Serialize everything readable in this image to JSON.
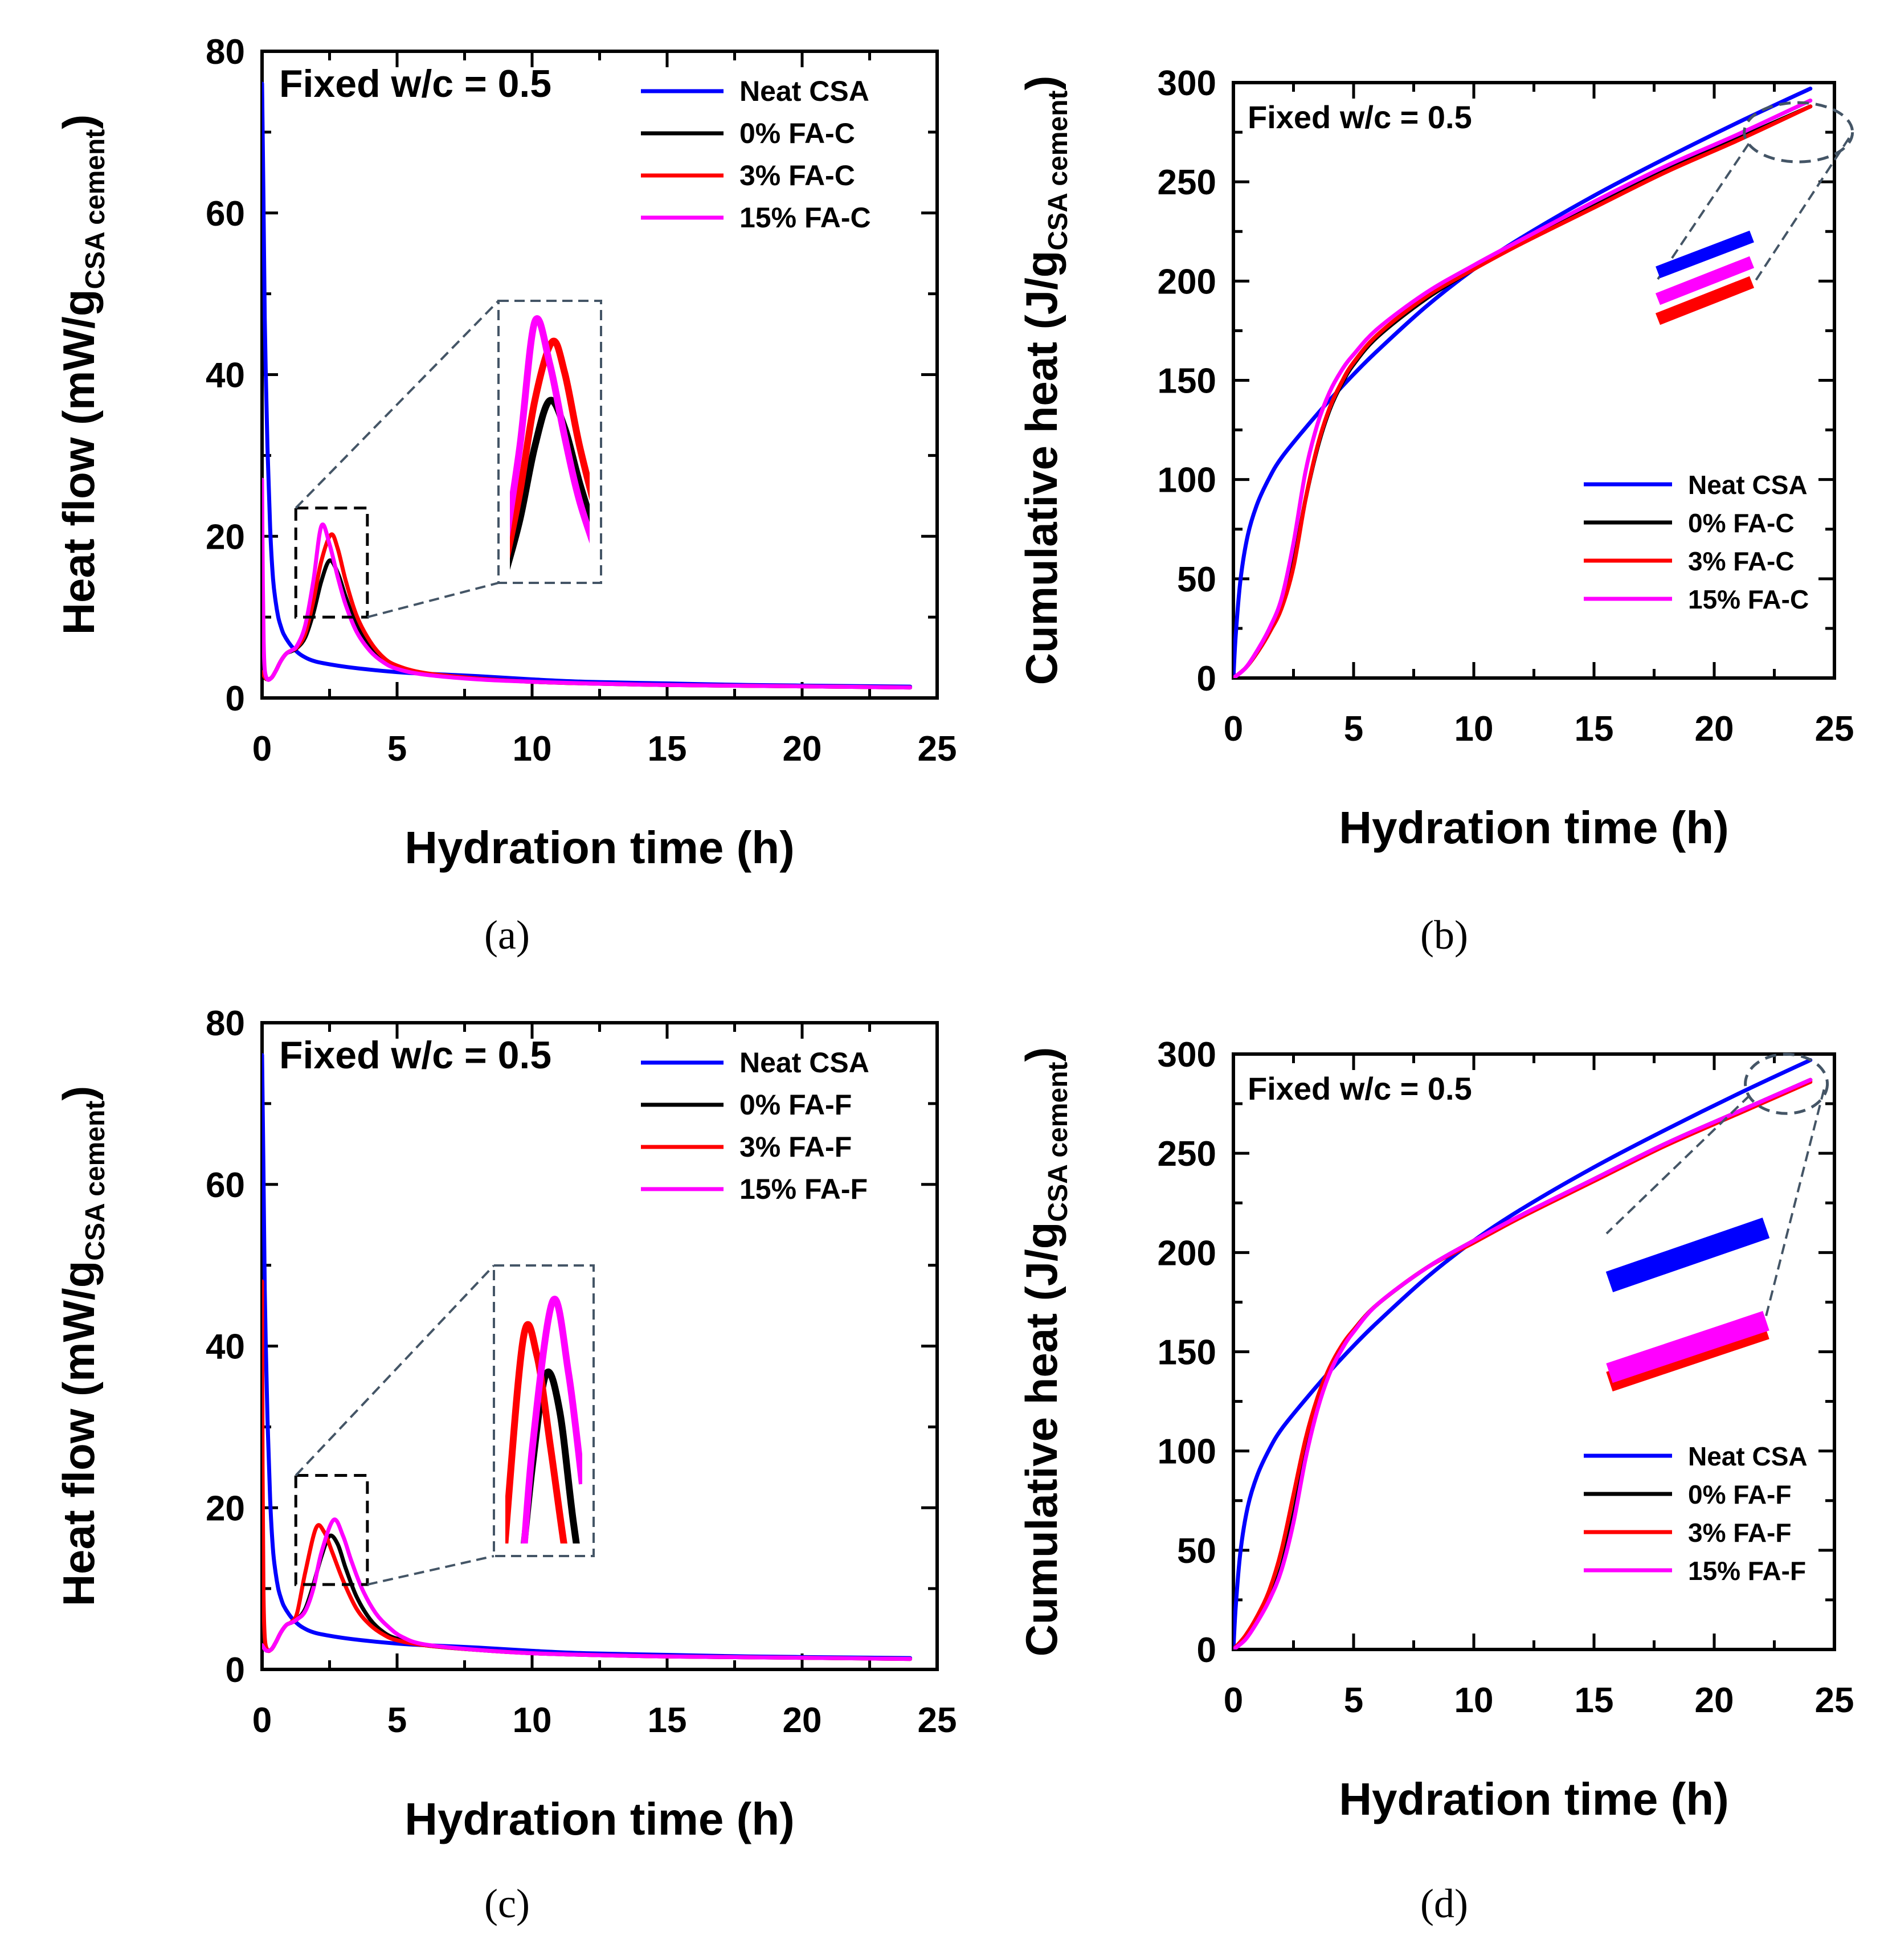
{
  "figure": {
    "captions": [
      "(a)",
      "(b)",
      "(c)",
      "(d)"
    ]
  },
  "colors": {
    "neat": "#0000ff",
    "zero": "#000000",
    "three": "#ff0000",
    "fifteen": "#ff00ff",
    "guide": "#445566"
  },
  "chart_data": [
    {
      "id": "a",
      "type": "line",
      "caption": "(a)",
      "annotation": "Fixed w/c = 0.5",
      "xlabel": "Hydration time (h)",
      "ylabel_main": "Heat flow (mW/g",
      "ylabel_sub": "CSA cement",
      "ylabel_close": ")",
      "xlim": [
        0,
        25
      ],
      "ylim": [
        0,
        80
      ],
      "xticks": [
        0,
        5,
        10,
        15,
        20,
        25
      ],
      "yticks": [
        0,
        20,
        40,
        60,
        80
      ],
      "legend_position": "top-right",
      "series": [
        {
          "name": "Neat CSA",
          "color_key": "neat",
          "x": [
            0,
            0.05,
            0.1,
            0.2,
            0.3,
            0.4,
            0.5,
            0.6,
            0.7,
            0.8,
            1.0,
            1.2,
            1.5,
            2,
            3,
            4,
            5,
            6,
            8,
            10,
            12,
            15,
            18,
            21,
            24
          ],
          "y": [
            76,
            62,
            47,
            31,
            21,
            15,
            12,
            10,
            8.8,
            7.9,
            6.8,
            6.0,
            5.2,
            4.5,
            3.9,
            3.5,
            3.2,
            3.0,
            2.7,
            2.3,
            2.0,
            1.8,
            1.6,
            1.5,
            1.4
          ]
        },
        {
          "name": "0% FA-C",
          "color_key": "zero",
          "x": [
            0,
            0.1,
            0.2,
            0.35,
            0.5,
            0.7,
            0.9,
            1.1,
            1.3,
            1.6,
            1.9,
            2.2,
            2.5,
            2.8,
            3.1,
            3.5,
            4,
            4.5,
            5,
            6,
            8,
            10,
            12,
            15,
            18,
            21,
            24
          ],
          "y": [
            3.0,
            2.5,
            2.3,
            2.5,
            3.3,
            4.6,
            5.5,
            5.8,
            6.2,
            7.5,
            10.5,
            14.5,
            17.0,
            15.5,
            12.5,
            9.0,
            6.2,
            4.6,
            3.8,
            3.0,
            2.4,
            2.0,
            1.8,
            1.6,
            1.5,
            1.4,
            1.3
          ]
        },
        {
          "name": "3% FA-C",
          "color_key": "three",
          "x": [
            0,
            0.1,
            0.2,
            0.35,
            0.5,
            0.7,
            0.9,
            1.1,
            1.3,
            1.6,
            1.9,
            2.2,
            2.55,
            2.8,
            3.1,
            3.5,
            4,
            4.5,
            5,
            6,
            8,
            10,
            12,
            15,
            18,
            21,
            24
          ],
          "y": [
            3.2,
            2.6,
            2.3,
            2.5,
            3.3,
            4.6,
            5.5,
            5.9,
            6.3,
            8.0,
            12.0,
            17.0,
            20.2,
            18.5,
            14.5,
            10.2,
            7.0,
            5.0,
            4.0,
            3.1,
            2.4,
            2.0,
            1.8,
            1.6,
            1.5,
            1.4,
            1.3
          ]
        },
        {
          "name": "15% FA-C",
          "color_key": "fifteen",
          "x": [
            0,
            0.03,
            0.06,
            0.1,
            0.2,
            0.35,
            0.5,
            0.7,
            0.9,
            1.1,
            1.3,
            1.6,
            1.9,
            2.2,
            2.5,
            2.8,
            3.1,
            3.5,
            4,
            4.5,
            5,
            6,
            8,
            10,
            12,
            15,
            18,
            21,
            24
          ],
          "y": [
            27,
            14,
            7,
            3.5,
            2.3,
            2.5,
            3.3,
            4.6,
            5.5,
            5.9,
            6.5,
            9.0,
            14.5,
            21.3,
            19.0,
            15.0,
            11.5,
            8.2,
            5.8,
            4.4,
            3.6,
            2.9,
            2.3,
            2.0,
            1.8,
            1.6,
            1.5,
            1.4,
            1.3
          ]
        }
      ]
    },
    {
      "id": "b",
      "type": "line",
      "caption": "(b)",
      "annotation": "Fixed w/c = 0.5",
      "xlabel": "Hydration time (h)",
      "ylabel_main": "Cumulative heat (J/g",
      "ylabel_sub": "CSA cement",
      "ylabel_close": ")",
      "xlim": [
        0,
        25
      ],
      "ylim": [
        0,
        300
      ],
      "xticks": [
        0,
        5,
        10,
        15,
        20,
        25
      ],
      "yticks": [
        0,
        50,
        100,
        150,
        200,
        250,
        300
      ],
      "legend_position": "bottom-right",
      "series": [
        {
          "name": "Neat CSA",
          "color_key": "neat",
          "x": [
            0,
            0.1,
            0.3,
            0.6,
            1,
            1.5,
            2,
            3,
            4,
            5,
            6,
            8,
            10,
            12,
            15,
            18,
            21,
            24
          ],
          "y": [
            0,
            22,
            50,
            72,
            88,
            101,
            111,
            126,
            140,
            153,
            165,
            187,
            206,
            222,
            243,
            262,
            280,
            297
          ]
        },
        {
          "name": "0% FA-C",
          "color_key": "zero",
          "x": [
            0,
            0.5,
            1,
            1.5,
            2,
            2.5,
            3,
            3.5,
            4,
            4.5,
            5,
            6,
            8,
            10,
            12,
            15,
            18,
            21,
            24
          ],
          "y": [
            0,
            5,
            13,
            23,
            36,
            58,
            90,
            116,
            135,
            148,
            158,
            172,
            191,
            206,
            220,
            238,
            256,
            272,
            288
          ]
        },
        {
          "name": "3% FA-C",
          "color_key": "three",
          "x": [
            0,
            0.5,
            1,
            1.5,
            2,
            2.5,
            3,
            3.5,
            4,
            4.5,
            5,
            6,
            8,
            10,
            12,
            15,
            18,
            21,
            24
          ],
          "y": [
            0,
            5,
            13,
            23,
            35,
            56,
            90,
            117,
            136,
            149,
            159,
            173,
            192,
            206,
            219,
            237,
            255,
            271,
            288
          ]
        },
        {
          "name": "15% FA-C",
          "color_key": "fifteen",
          "x": [
            0,
            0.5,
            1,
            1.5,
            2,
            2.5,
            3,
            3.5,
            4,
            4.5,
            5,
            6,
            8,
            10,
            12,
            15,
            18,
            21,
            24
          ],
          "y": [
            0,
            5,
            14,
            25,
            40,
            68,
            104,
            128,
            144,
            155,
            163,
            176,
            194,
            208,
            221,
            240,
            258,
            274,
            291
          ]
        }
      ]
    },
    {
      "id": "c",
      "type": "line",
      "caption": "(c)",
      "annotation": "Fixed w/c = 0.5",
      "xlabel": "Hydration time (h)",
      "ylabel_main": "Heat flow (mW/g",
      "ylabel_sub": "CSA cement",
      "ylabel_close": ")",
      "xlim": [
        0,
        25
      ],
      "ylim": [
        0,
        80
      ],
      "xticks": [
        0,
        5,
        10,
        15,
        20,
        25
      ],
      "yticks": [
        0,
        20,
        40,
        60,
        80
      ],
      "legend_position": "top-right",
      "series": [
        {
          "name": "Neat CSA",
          "color_key": "neat",
          "x": [
            0,
            0.05,
            0.1,
            0.2,
            0.3,
            0.4,
            0.5,
            0.6,
            0.7,
            0.8,
            1.0,
            1.2,
            1.5,
            2,
            3,
            4,
            5,
            6,
            8,
            10,
            12,
            15,
            18,
            21,
            24
          ],
          "y": [
            76,
            62,
            47,
            31,
            21,
            15,
            12,
            10,
            8.8,
            7.9,
            6.8,
            6.0,
            5.2,
            4.5,
            3.9,
            3.5,
            3.2,
            3.0,
            2.7,
            2.3,
            2.0,
            1.8,
            1.6,
            1.5,
            1.4
          ]
        },
        {
          "name": "0% FA-F",
          "color_key": "zero",
          "x": [
            0,
            0.1,
            0.2,
            0.35,
            0.5,
            0.7,
            0.9,
            1.1,
            1.3,
            1.6,
            1.9,
            2.2,
            2.5,
            2.8,
            3.1,
            3.5,
            4,
            4.5,
            5,
            6,
            8,
            10,
            12,
            15,
            18,
            21,
            24
          ],
          "y": [
            3.0,
            2.5,
            2.3,
            2.5,
            3.3,
            4.6,
            5.5,
            5.8,
            6.2,
            7.5,
            10.5,
            14.0,
            16.5,
            15.5,
            12.5,
            9.0,
            6.2,
            4.6,
            3.8,
            3.0,
            2.4,
            2.0,
            1.8,
            1.6,
            1.5,
            1.4,
            1.3
          ]
        },
        {
          "name": "3% FA-F",
          "color_key": "three",
          "x": [
            0,
            0.02,
            0.05,
            0.1,
            0.2,
            0.35,
            0.5,
            0.7,
            0.9,
            1.1,
            1.3,
            1.6,
            2.0,
            2.3,
            2.6,
            3.0,
            3.5,
            4,
            4.5,
            5,
            6,
            8,
            10,
            12,
            15,
            18,
            21,
            24
          ],
          "y": [
            48,
            25,
            10,
            4.0,
            2.4,
            2.5,
            3.3,
            4.6,
            5.5,
            5.9,
            7.0,
            12.0,
            17.5,
            17.0,
            14.5,
            11.0,
            7.5,
            5.5,
            4.3,
            3.6,
            3.0,
            2.4,
            2.0,
            1.8,
            1.6,
            1.5,
            1.4,
            1.3
          ]
        },
        {
          "name": "15% FA-F",
          "color_key": "fifteen",
          "x": [
            0,
            0.1,
            0.2,
            0.35,
            0.5,
            0.7,
            0.9,
            1.1,
            1.3,
            1.6,
            1.9,
            2.2,
            2.65,
            3.0,
            3.3,
            3.7,
            4.2,
            4.7,
            5.2,
            6,
            8,
            10,
            12,
            15,
            18,
            21,
            24
          ],
          "y": [
            3.0,
            2.5,
            2.3,
            2.5,
            3.3,
            4.6,
            5.5,
            5.8,
            6.2,
            7.2,
            10.0,
            14.5,
            18.5,
            16.5,
            13.5,
            10.0,
            7.0,
            5.2,
            4.0,
            3.1,
            2.4,
            2.0,
            1.8,
            1.6,
            1.5,
            1.4,
            1.3
          ]
        }
      ]
    },
    {
      "id": "d",
      "type": "line",
      "caption": "(d)",
      "annotation": "Fixed w/c = 0.5",
      "xlabel": "Hydration time (h)",
      "ylabel_main": "Cumulative heat (J/g",
      "ylabel_sub": "CSA cement",
      "ylabel_close": ")",
      "xlim": [
        0,
        25
      ],
      "ylim": [
        0,
        300
      ],
      "xticks": [
        0,
        5,
        10,
        15,
        20,
        25
      ],
      "yticks": [
        0,
        50,
        100,
        150,
        200,
        250,
        300
      ],
      "legend_position": "bottom-right",
      "series": [
        {
          "name": "Neat CSA",
          "color_key": "neat",
          "x": [
            0,
            0.1,
            0.3,
            0.6,
            1,
            1.5,
            2,
            3,
            4,
            5,
            6,
            8,
            10,
            12,
            15,
            18,
            21,
            24
          ],
          "y": [
            0,
            22,
            50,
            72,
            88,
            101,
            111,
            126,
            140,
            153,
            165,
            187,
            206,
            222,
            243,
            262,
            280,
            297
          ]
        },
        {
          "name": "0% FA-F",
          "color_key": "zero",
          "x": [
            0,
            0.5,
            1,
            1.5,
            2,
            2.5,
            3,
            3.5,
            4,
            4.5,
            5,
            6,
            8,
            10,
            12,
            15,
            18,
            21,
            24
          ],
          "y": [
            0,
            6,
            15,
            26,
            42,
            68,
            98,
            122,
            140,
            152,
            161,
            174,
            192,
            206,
            219,
            237,
            255,
            271,
            287
          ]
        },
        {
          "name": "3% FA-F",
          "color_key": "three",
          "x": [
            0,
            0.5,
            1,
            1.5,
            2,
            2.5,
            3,
            3.5,
            4,
            4.5,
            5,
            6,
            8,
            10,
            12,
            15,
            18,
            21,
            24
          ],
          "y": [
            0,
            7,
            17,
            30,
            50,
            78,
            106,
            127,
            142,
            153,
            161,
            174,
            192,
            205,
            218,
            236,
            254,
            270,
            286
          ]
        },
        {
          "name": "15% FA-F",
          "color_key": "fifteen",
          "x": [
            0,
            0.5,
            1,
            1.5,
            2,
            2.5,
            3,
            3.5,
            4,
            4.5,
            5,
            6,
            8,
            10,
            12,
            15,
            18,
            21,
            24
          ],
          "y": [
            0,
            5,
            14,
            25,
            40,
            64,
            96,
            121,
            139,
            151,
            160,
            174,
            192,
            206,
            219,
            237,
            255,
            271,
            287
          ]
        }
      ]
    }
  ]
}
